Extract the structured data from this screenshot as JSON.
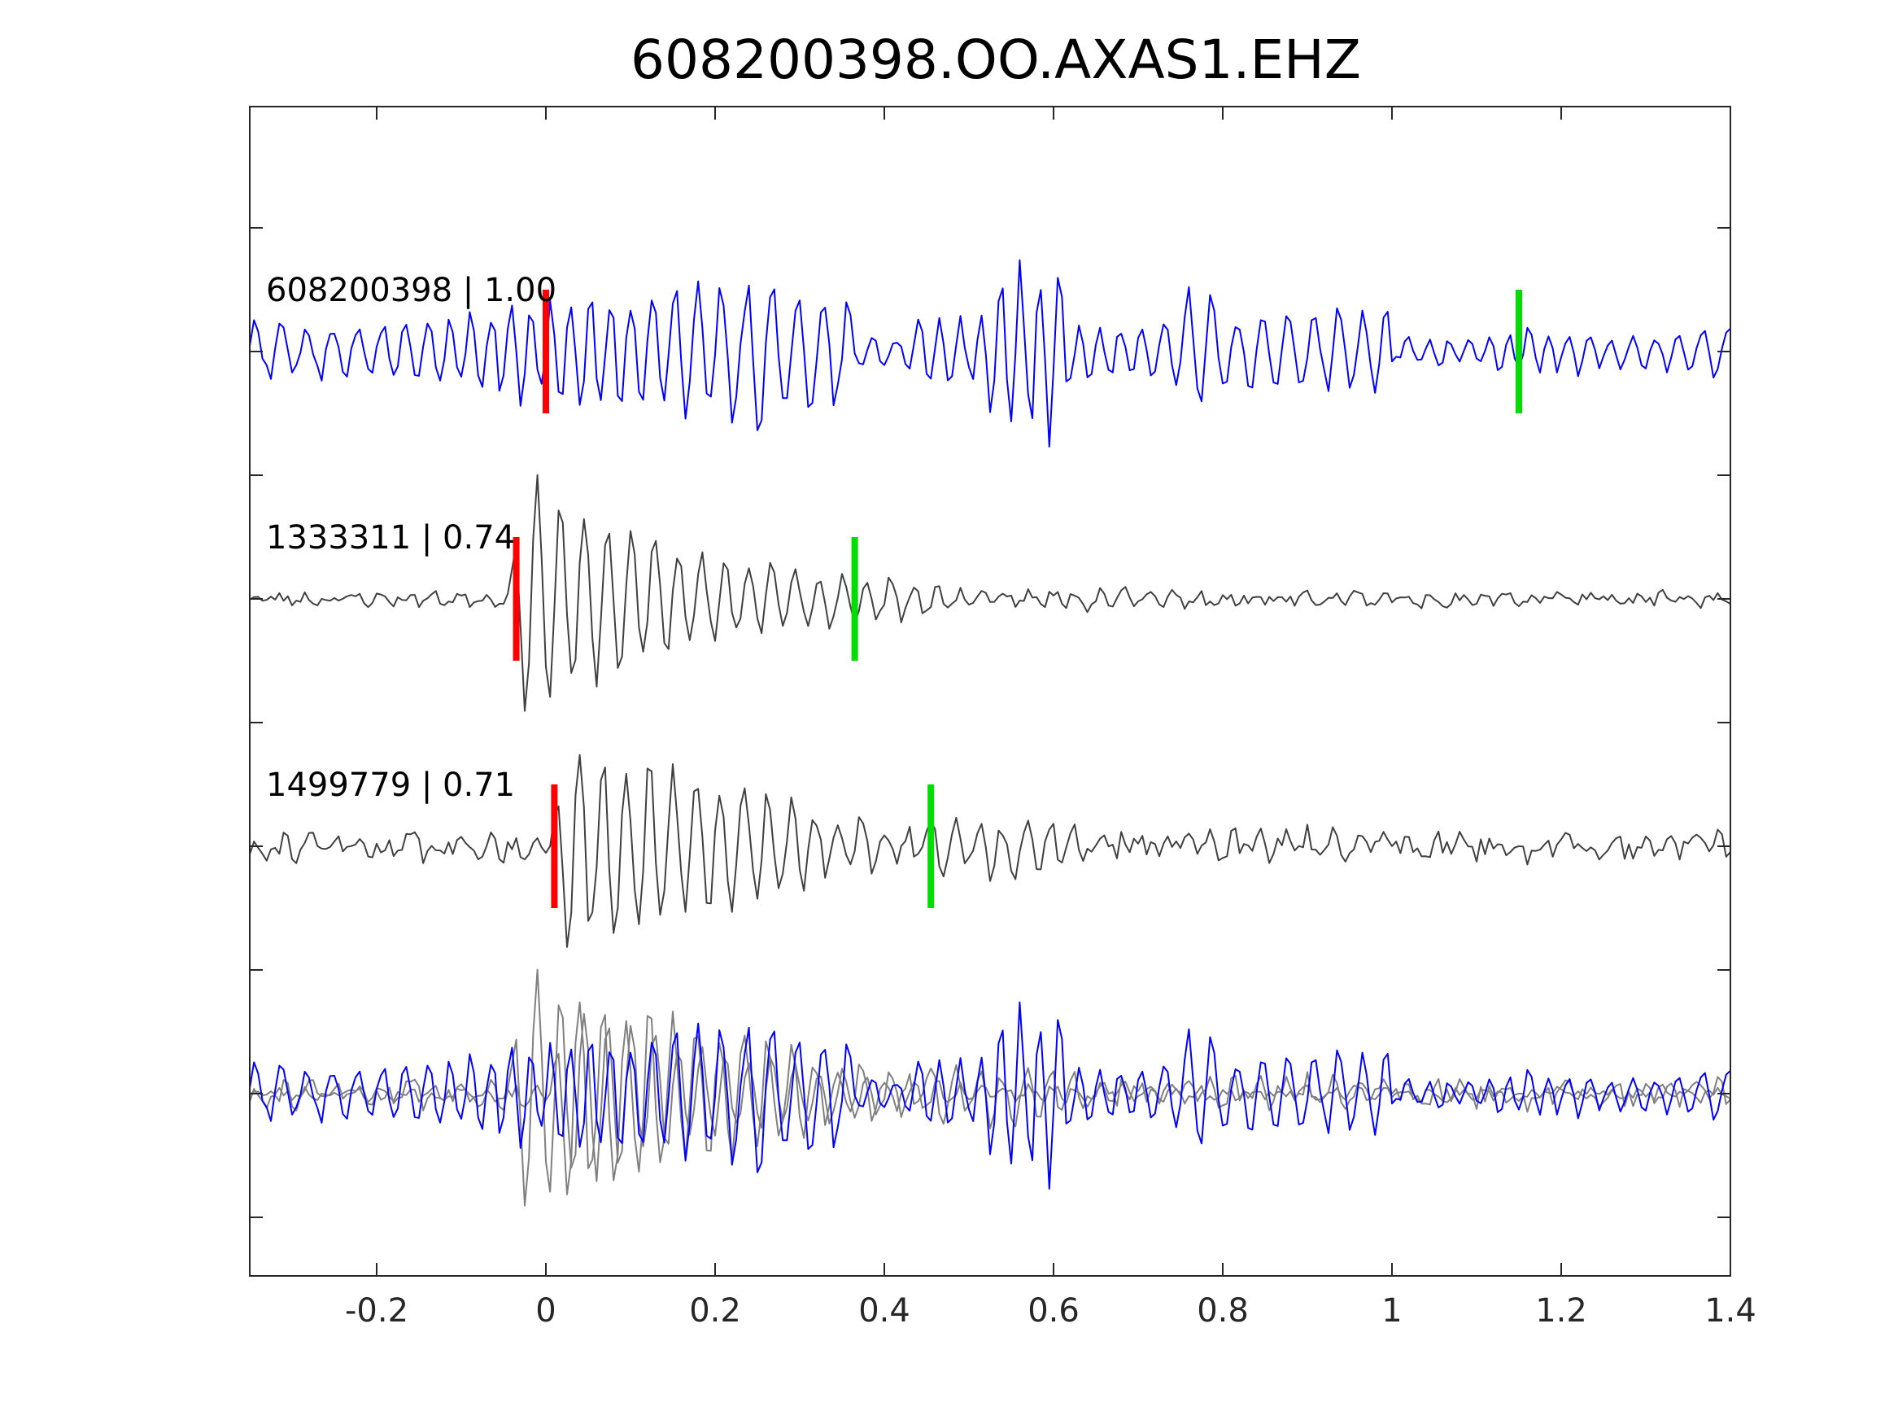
{
  "chart_data": {
    "type": "line",
    "title": "608200398.OO.AXAS1.EHZ",
    "xlabel": "",
    "ylabel": "",
    "xlim": [
      -0.35,
      1.4
    ],
    "x_ticks": [
      -0.2,
      0,
      0.2,
      0.4,
      0.6,
      0.8,
      1,
      1.2,
      1.4
    ],
    "x_tick_labels": [
      "-0.2",
      "0",
      "0.2",
      "0.4",
      "0.6",
      "0.8",
      "1",
      "1.2",
      "1.4"
    ],
    "grid": false,
    "legend": "none",
    "series": [
      {
        "label": "608200398 | 1.00",
        "color": "#0000ff",
        "p_pick": 0.0,
        "s_pick": 1.15
      },
      {
        "label": "1333311 | 0.74",
        "color": "#404040",
        "p_pick": -0.035,
        "s_pick": 0.365
      },
      {
        "label": "1499779 | 0.71",
        "color": "#404040",
        "p_pick": 0.01,
        "s_pick": 0.455
      }
    ],
    "overlay": {
      "template_color": "#808080",
      "target_color": "#0000ff"
    },
    "pick_colors": {
      "p": "#ff0000",
      "s": "#00dd00"
    }
  }
}
